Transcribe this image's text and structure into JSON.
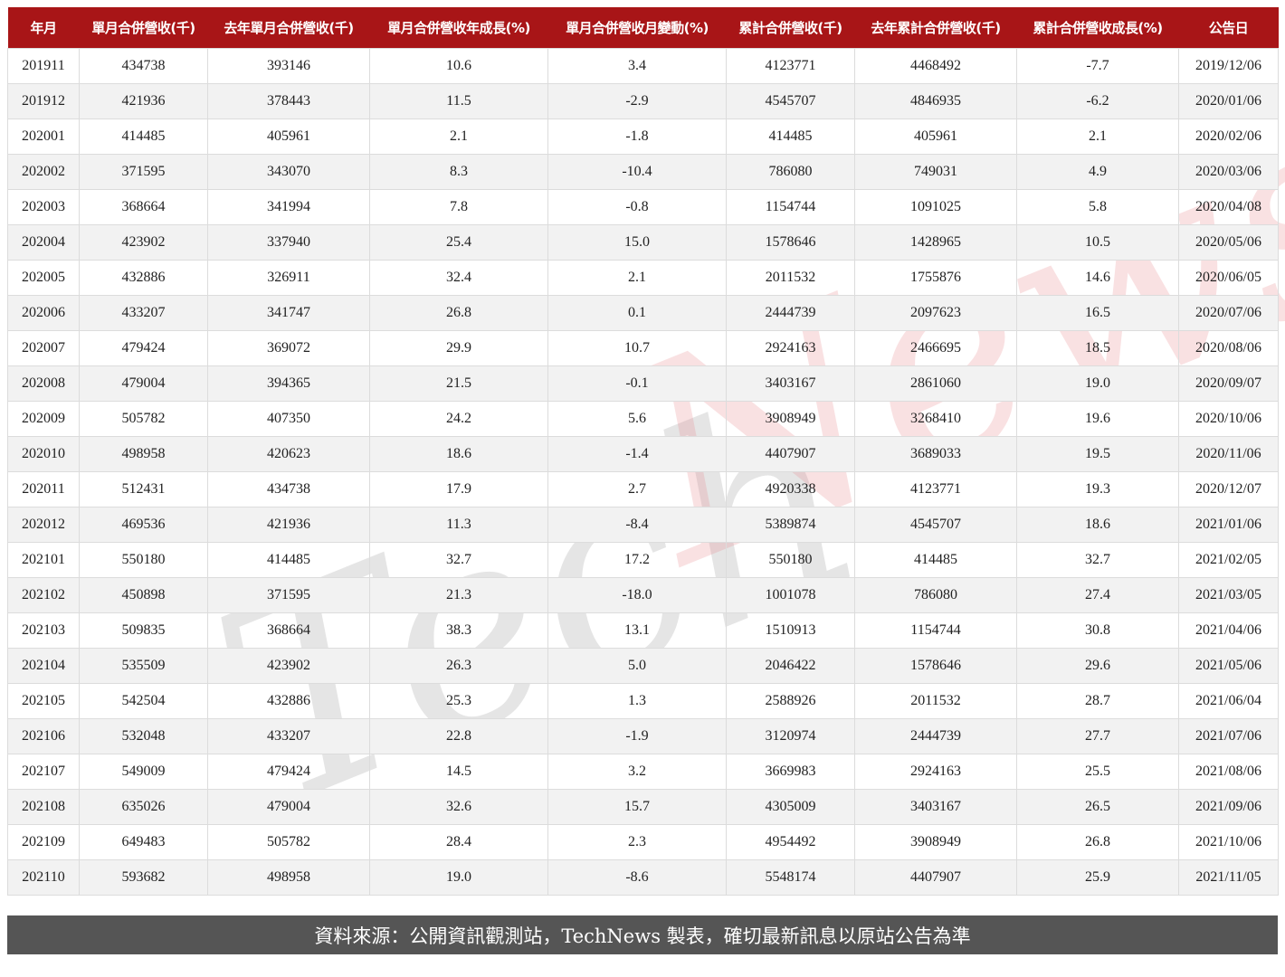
{
  "colors": {
    "header": "#a81517",
    "alt_row": "#f2f2f2",
    "footer": "#555555",
    "watermark_tech": "#9a9a9a",
    "watermark_news": "#e88a8f"
  },
  "chart_data": {
    "type": "table",
    "columns": [
      "年月",
      "單月合併營收(千)",
      "去年單月合併營收(千)",
      "單月合併營收年成長(%)",
      "單月合併營收月變動(%)",
      "累計合併營收(千)",
      "去年累計合併營收(千)",
      "累計合併營收成長(%)",
      "公告日"
    ],
    "rows": [
      [
        "201911",
        "434738",
        "393146",
        "10.6",
        "3.4",
        "4123771",
        "4468492",
        "-7.7",
        "2019/12/06"
      ],
      [
        "201912",
        "421936",
        "378443",
        "11.5",
        "-2.9",
        "4545707",
        "4846935",
        "-6.2",
        "2020/01/06"
      ],
      [
        "202001",
        "414485",
        "405961",
        "2.1",
        "-1.8",
        "414485",
        "405961",
        "2.1",
        "2020/02/06"
      ],
      [
        "202002",
        "371595",
        "343070",
        "8.3",
        "-10.4",
        "786080",
        "749031",
        "4.9",
        "2020/03/06"
      ],
      [
        "202003",
        "368664",
        "341994",
        "7.8",
        "-0.8",
        "1154744",
        "1091025",
        "5.8",
        "2020/04/08"
      ],
      [
        "202004",
        "423902",
        "337940",
        "25.4",
        "15.0",
        "1578646",
        "1428965",
        "10.5",
        "2020/05/06"
      ],
      [
        "202005",
        "432886",
        "326911",
        "32.4",
        "2.1",
        "2011532",
        "1755876",
        "14.6",
        "2020/06/05"
      ],
      [
        "202006",
        "433207",
        "341747",
        "26.8",
        "0.1",
        "2444739",
        "2097623",
        "16.5",
        "2020/07/06"
      ],
      [
        "202007",
        "479424",
        "369072",
        "29.9",
        "10.7",
        "2924163",
        "2466695",
        "18.5",
        "2020/08/06"
      ],
      [
        "202008",
        "479004",
        "394365",
        "21.5",
        "-0.1",
        "3403167",
        "2861060",
        "19.0",
        "2020/09/07"
      ],
      [
        "202009",
        "505782",
        "407350",
        "24.2",
        "5.6",
        "3908949",
        "3268410",
        "19.6",
        "2020/10/06"
      ],
      [
        "202010",
        "498958",
        "420623",
        "18.6",
        "-1.4",
        "4407907",
        "3689033",
        "19.5",
        "2020/11/06"
      ],
      [
        "202011",
        "512431",
        "434738",
        "17.9",
        "2.7",
        "4920338",
        "4123771",
        "19.3",
        "2020/12/07"
      ],
      [
        "202012",
        "469536",
        "421936",
        "11.3",
        "-8.4",
        "5389874",
        "4545707",
        "18.6",
        "2021/01/06"
      ],
      [
        "202101",
        "550180",
        "414485",
        "32.7",
        "17.2",
        "550180",
        "414485",
        "32.7",
        "2021/02/05"
      ],
      [
        "202102",
        "450898",
        "371595",
        "21.3",
        "-18.0",
        "1001078",
        "786080",
        "27.4",
        "2021/03/05"
      ],
      [
        "202103",
        "509835",
        "368664",
        "38.3",
        "13.1",
        "1510913",
        "1154744",
        "30.8",
        "2021/04/06"
      ],
      [
        "202104",
        "535509",
        "423902",
        "26.3",
        "5.0",
        "2046422",
        "1578646",
        "29.6",
        "2021/05/06"
      ],
      [
        "202105",
        "542504",
        "432886",
        "25.3",
        "1.3",
        "2588926",
        "2011532",
        "28.7",
        "2021/06/04"
      ],
      [
        "202106",
        "532048",
        "433207",
        "22.8",
        "-1.9",
        "3120974",
        "2444739",
        "27.7",
        "2021/07/06"
      ],
      [
        "202107",
        "549009",
        "479424",
        "14.5",
        "3.2",
        "3669983",
        "2924163",
        "25.5",
        "2021/08/06"
      ],
      [
        "202108",
        "635026",
        "479004",
        "32.6",
        "15.7",
        "4305009",
        "3403167",
        "26.5",
        "2021/09/06"
      ],
      [
        "202109",
        "649483",
        "505782",
        "28.4",
        "2.3",
        "4954492",
        "3908949",
        "26.8",
        "2021/10/06"
      ],
      [
        "202110",
        "593682",
        "498958",
        "19.0",
        "-8.6",
        "5548174",
        "4407907",
        "25.9",
        "2021/11/05"
      ]
    ]
  },
  "footer": {
    "text": "資料來源：公開資訊觀測站，TechNews 製表，確切最新訊息以原站公告為準"
  },
  "watermark": {
    "part1": "Tech",
    "part2": "News"
  }
}
